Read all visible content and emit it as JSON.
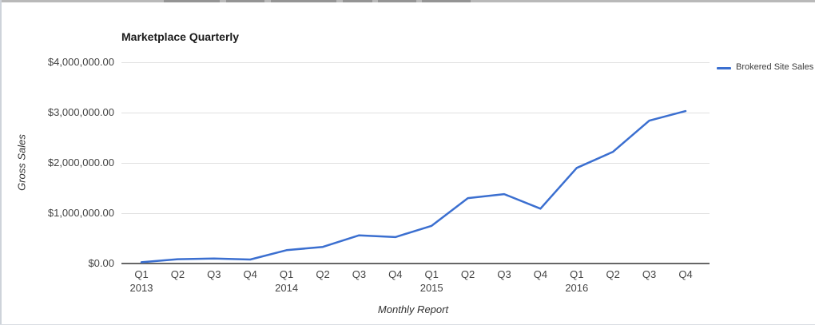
{
  "window": {
    "artifact_note": "clipped-gray-strip-top"
  },
  "chart": {
    "title": "Marketplace Quarterly",
    "x_axis_title": "Monthly Report",
    "y_axis_title": "Gross Sales",
    "legend": {
      "position": "right",
      "items": [
        {
          "label": "Brokered Site Sales",
          "color": "#3b6fd0"
        }
      ]
    }
  },
  "chart_data": {
    "type": "line",
    "title": "Marketplace Quarterly",
    "xlabel": "Monthly Report",
    "ylabel": "Gross Sales",
    "grid": true,
    "legend_position": "right",
    "ylim": [
      0,
      4000000
    ],
    "y_ticks": [
      {
        "value": 0,
        "label": "$0.00"
      },
      {
        "value": 1000000,
        "label": "$1,000,000.00"
      },
      {
        "value": 2000000,
        "label": "$2,000,000.00"
      },
      {
        "value": 3000000,
        "label": "$3,000,000.00"
      },
      {
        "value": 4000000,
        "label": "$4,000,000.00"
      }
    ],
    "categories": [
      "Q1 2013",
      "Q2 2013",
      "Q3 2013",
      "Q4 2013",
      "Q1 2014",
      "Q2 2014",
      "Q3 2014",
      "Q4 2014",
      "Q1 2015",
      "Q2 2015",
      "Q3 2015",
      "Q4 2015",
      "Q1 2016",
      "Q2 2016",
      "Q3 2016",
      "Q4 2016"
    ],
    "x_tick_quarters": [
      "Q1",
      "Q2",
      "Q3",
      "Q4",
      "Q1",
      "Q2",
      "Q3",
      "Q4",
      "Q1",
      "Q2",
      "Q3",
      "Q4",
      "Q1",
      "Q2",
      "Q3",
      "Q4"
    ],
    "x_year_labels": [
      {
        "index": 0,
        "label": "2013"
      },
      {
        "index": 4,
        "label": "2014"
      },
      {
        "index": 8,
        "label": "2015"
      },
      {
        "index": 12,
        "label": "2016"
      }
    ],
    "series": [
      {
        "name": "Brokered Site Sales",
        "color": "#3b6fd0",
        "values": [
          25000,
          85000,
          100000,
          80000,
          265000,
          330000,
          560000,
          525000,
          750000,
          1300000,
          1380000,
          1090000,
          1900000,
          2220000,
          2840000,
          3030000
        ]
      }
    ]
  }
}
